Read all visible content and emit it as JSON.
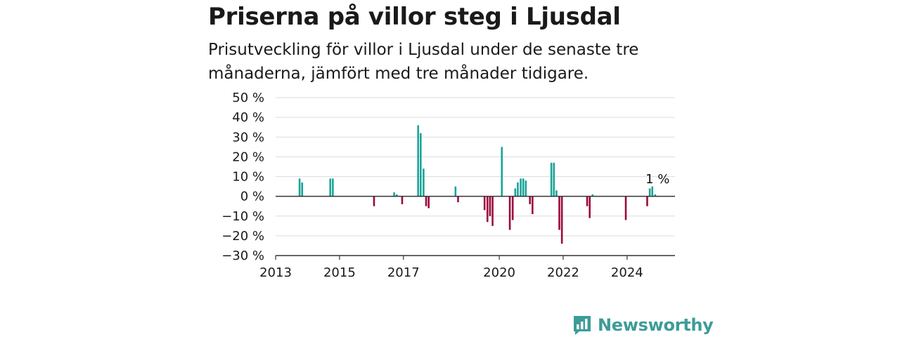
{
  "header": {
    "title": "Priserna på villor steg i Ljusdal",
    "subtitle": "Prisutveckling för villor i Ljusdal under de senaste tre månaderna, jämfört med tre månader tidigare."
  },
  "brand": {
    "name": "Newsworthy",
    "icon": "newsworthy-logo-icon",
    "color": "#3d9c98"
  },
  "colors": {
    "positive": "#1aa39a",
    "negative": "#9c0a3e",
    "grid": "#dcdcdc",
    "axis": "#333333"
  },
  "chart_data": {
    "type": "bar",
    "title": "Priserna på villor steg i Ljusdal",
    "xlabel": "",
    "ylabel": "",
    "ylim": [
      -30,
      50
    ],
    "xlim": [
      2013.0,
      2025.5
    ],
    "y_ticks": [
      -30,
      -20,
      -10,
      0,
      10,
      20,
      30,
      40,
      50
    ],
    "y_tick_labels": [
      "−30 %",
      "−20 %",
      "−10 %",
      "0 %",
      "10 %",
      "20 %",
      "30 %",
      "40 %",
      "50 %"
    ],
    "x_ticks": [
      2013,
      2015,
      2017,
      2020,
      2022,
      2024
    ],
    "x_tick_labels": [
      "2013",
      "2015",
      "2017",
      "2020",
      "2022",
      "2024"
    ],
    "grid": true,
    "annotation": {
      "text": "1 %",
      "x": 2025.0,
      "y": 1
    },
    "points": [
      {
        "x": 2013.75,
        "y": 9
      },
      {
        "x": 2013.83,
        "y": 7
      },
      {
        "x": 2014.71,
        "y": 9
      },
      {
        "x": 2014.79,
        "y": 9
      },
      {
        "x": 2016.08,
        "y": -5
      },
      {
        "x": 2016.71,
        "y": 2
      },
      {
        "x": 2016.79,
        "y": 1
      },
      {
        "x": 2016.96,
        "y": -4
      },
      {
        "x": 2017.46,
        "y": 36
      },
      {
        "x": 2017.54,
        "y": 32
      },
      {
        "x": 2017.63,
        "y": 14
      },
      {
        "x": 2017.71,
        "y": -5
      },
      {
        "x": 2017.79,
        "y": -6
      },
      {
        "x": 2018.63,
        "y": 5
      },
      {
        "x": 2018.71,
        "y": -3
      },
      {
        "x": 2019.54,
        "y": -7
      },
      {
        "x": 2019.63,
        "y": -13
      },
      {
        "x": 2019.71,
        "y": -10
      },
      {
        "x": 2019.79,
        "y": -15
      },
      {
        "x": 2020.08,
        "y": 25
      },
      {
        "x": 2020.33,
        "y": -17
      },
      {
        "x": 2020.42,
        "y": -12
      },
      {
        "x": 2020.5,
        "y": 4
      },
      {
        "x": 2020.58,
        "y": 7
      },
      {
        "x": 2020.67,
        "y": 9
      },
      {
        "x": 2020.75,
        "y": 9
      },
      {
        "x": 2020.83,
        "y": 8
      },
      {
        "x": 2020.96,
        "y": -4
      },
      {
        "x": 2021.04,
        "y": -9
      },
      {
        "x": 2021.63,
        "y": 17
      },
      {
        "x": 2021.71,
        "y": 17
      },
      {
        "x": 2021.79,
        "y": 3
      },
      {
        "x": 2021.88,
        "y": -17
      },
      {
        "x": 2021.96,
        "y": -24
      },
      {
        "x": 2022.75,
        "y": -5
      },
      {
        "x": 2022.83,
        "y": -11
      },
      {
        "x": 2022.92,
        "y": 1
      },
      {
        "x": 2023.96,
        "y": -12
      },
      {
        "x": 2024.63,
        "y": -5
      },
      {
        "x": 2024.71,
        "y": 4
      },
      {
        "x": 2024.79,
        "y": 5
      },
      {
        "x": 2024.88,
        "y": 1
      }
    ]
  }
}
